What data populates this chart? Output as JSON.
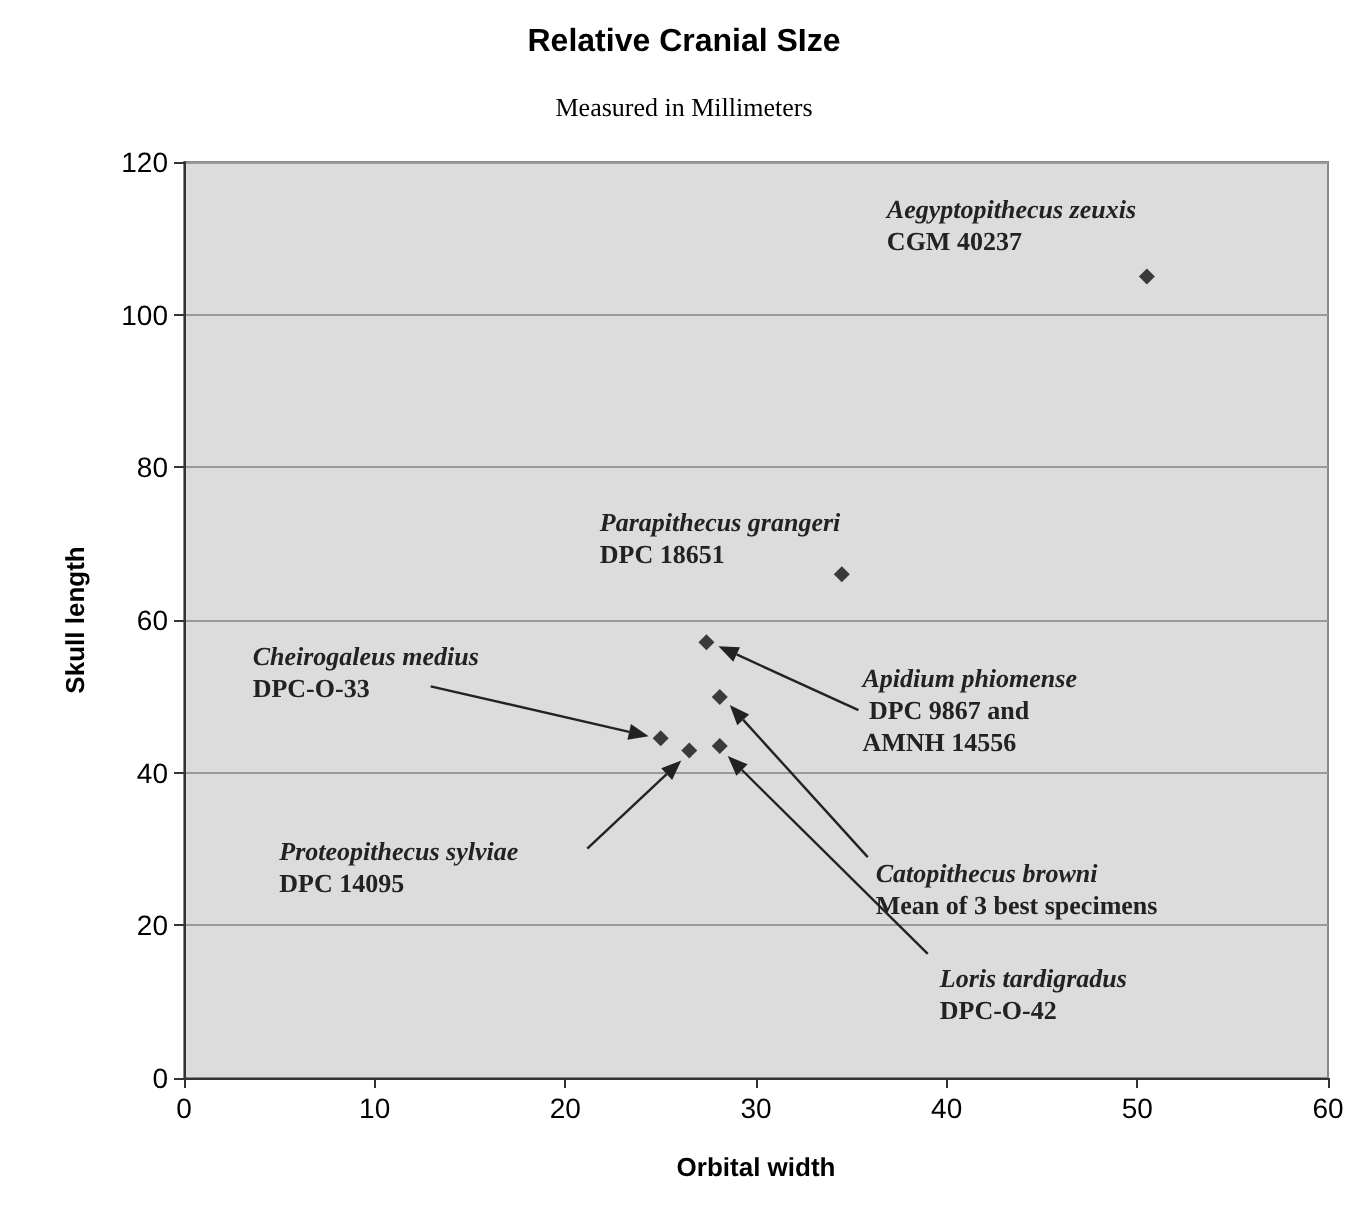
{
  "chart_data": {
    "type": "scatter",
    "title": "Relative Cranial SIze",
    "subtitle": "Measured in Millimeters",
    "xlabel": "Orbital width",
    "ylabel": "Skull length",
    "x": [
      50.5,
      34.5,
      27.4,
      28.1,
      25.0,
      26.5,
      28.1
    ],
    "values": [
      105,
      66,
      57.1,
      49.9,
      44.5,
      42.9,
      43.5
    ],
    "color": "#111111",
    "marker": "diamond",
    "xlim": [
      0,
      60
    ],
    "xticks": [
      0,
      10,
      20,
      30,
      40,
      50,
      60
    ],
    "ylim": [
      0,
      120
    ],
    "yticks": [
      0,
      20,
      40,
      60,
      80,
      100,
      120
    ],
    "grid": "y",
    "annotations": [
      "Aegyptopithecus zeuxis\nCGM 40237",
      "Parapithecus grangeri\nDPC 18651",
      "Apidium phiomense\n DPC 9867 and\nAMNH 14556",
      "Catopithecus browni\nMean of 3 best specimens",
      "Cheirogaleus medius\nDPC-O-33",
      "Proteopithecus sylviae\nDPC 14095",
      "Loris tardigradus\nDPC-O-42"
    ]
  }
}
